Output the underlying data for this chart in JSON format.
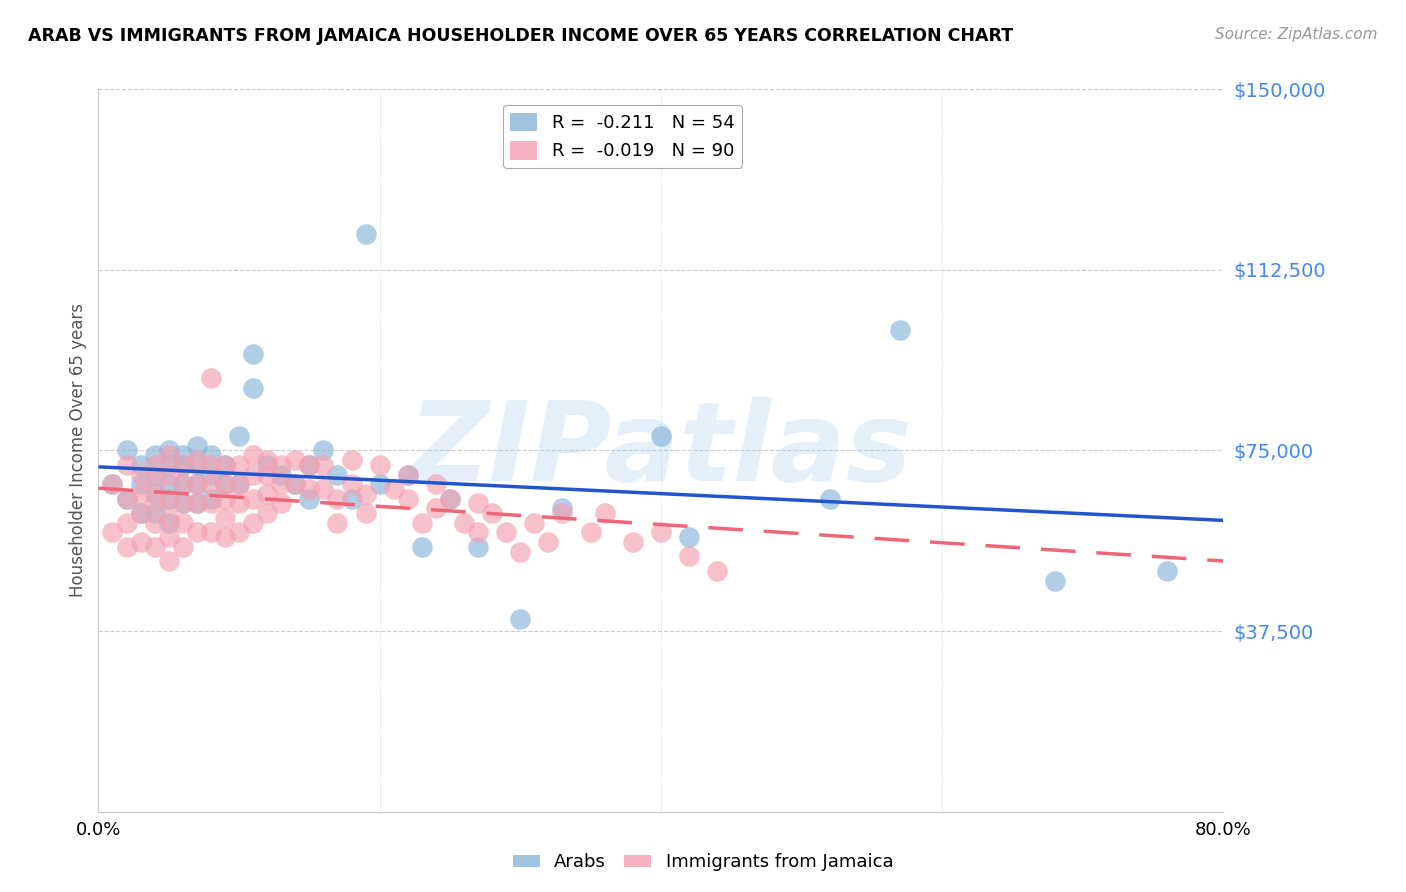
{
  "title": "ARAB VS IMMIGRANTS FROM JAMAICA HOUSEHOLDER INCOME OVER 65 YEARS CORRELATION CHART",
  "source": "Source: ZipAtlas.com",
  "ylabel": "Householder Income Over 65 years",
  "ylim": [
    0,
    150000
  ],
  "xlim": [
    0.0,
    0.8
  ],
  "yticks": [
    0,
    37500,
    75000,
    112500,
    150000
  ],
  "ytick_labels": [
    "",
    "$37,500",
    "$75,000",
    "$112,500",
    "$150,000"
  ],
  "xticks": [
    0.0,
    0.2,
    0.4,
    0.6,
    0.8
  ],
  "xtick_labels": [
    "0.0%",
    "",
    "",
    "",
    "80.0%"
  ],
  "arab_color": "#89B4D9",
  "jamaica_color": "#F4A0B0",
  "arab_line_color": "#2255CC",
  "jamaica_line_color": "#EE6677",
  "watermark": "ZIPatlas",
  "legend_arab_label": "R =  -0.211   N = 54",
  "legend_jamaica_label": "R =  -0.019   N = 90",
  "bottom_legend_arab": "Arabs",
  "bottom_legend_jamaica": "Immigrants from Jamaica",
  "arab_x": [
    0.01,
    0.02,
    0.02,
    0.03,
    0.03,
    0.03,
    0.04,
    0.04,
    0.04,
    0.04,
    0.05,
    0.05,
    0.05,
    0.05,
    0.05,
    0.06,
    0.06,
    0.06,
    0.06,
    0.07,
    0.07,
    0.07,
    0.07,
    0.08,
    0.08,
    0.08,
    0.09,
    0.09,
    0.1,
    0.1,
    0.11,
    0.11,
    0.12,
    0.13,
    0.14,
    0.15,
    0.15,
    0.16,
    0.17,
    0.18,
    0.19,
    0.2,
    0.22,
    0.23,
    0.25,
    0.27,
    0.3,
    0.33,
    0.4,
    0.42,
    0.52,
    0.57,
    0.68,
    0.76
  ],
  "arab_y": [
    68000,
    75000,
    65000,
    72000,
    68000,
    62000,
    74000,
    70000,
    66000,
    62000,
    75000,
    72000,
    68000,
    65000,
    60000,
    74000,
    72000,
    68000,
    64000,
    76000,
    72000,
    68000,
    64000,
    74000,
    70000,
    65000,
    72000,
    68000,
    78000,
    68000,
    95000,
    88000,
    72000,
    70000,
    68000,
    72000,
    65000,
    75000,
    70000,
    65000,
    120000,
    68000,
    70000,
    55000,
    65000,
    55000,
    40000,
    63000,
    78000,
    57000,
    65000,
    100000,
    48000,
    50000
  ],
  "jamaica_x": [
    0.01,
    0.01,
    0.02,
    0.02,
    0.02,
    0.02,
    0.03,
    0.03,
    0.03,
    0.03,
    0.04,
    0.04,
    0.04,
    0.04,
    0.04,
    0.05,
    0.05,
    0.05,
    0.05,
    0.05,
    0.05,
    0.06,
    0.06,
    0.06,
    0.06,
    0.06,
    0.07,
    0.07,
    0.07,
    0.07,
    0.08,
    0.08,
    0.08,
    0.08,
    0.08,
    0.09,
    0.09,
    0.09,
    0.09,
    0.09,
    0.1,
    0.1,
    0.1,
    0.1,
    0.11,
    0.11,
    0.11,
    0.11,
    0.12,
    0.12,
    0.12,
    0.12,
    0.13,
    0.13,
    0.13,
    0.14,
    0.14,
    0.15,
    0.15,
    0.16,
    0.16,
    0.17,
    0.17,
    0.18,
    0.18,
    0.19,
    0.19,
    0.2,
    0.21,
    0.22,
    0.22,
    0.23,
    0.24,
    0.24,
    0.25,
    0.26,
    0.27,
    0.27,
    0.28,
    0.29,
    0.3,
    0.31,
    0.32,
    0.33,
    0.35,
    0.36,
    0.38,
    0.4,
    0.42,
    0.44
  ],
  "jamaica_y": [
    68000,
    58000,
    72000,
    65000,
    60000,
    55000,
    70000,
    66000,
    62000,
    56000,
    72000,
    68000,
    64000,
    60000,
    55000,
    74000,
    70000,
    65000,
    61000,
    57000,
    52000,
    72000,
    68000,
    64000,
    60000,
    55000,
    73000,
    68000,
    64000,
    58000,
    90000,
    72000,
    68000,
    64000,
    58000,
    72000,
    68000,
    65000,
    61000,
    57000,
    72000,
    68000,
    64000,
    58000,
    74000,
    70000,
    65000,
    60000,
    73000,
    70000,
    66000,
    62000,
    72000,
    68000,
    64000,
    73000,
    68000,
    72000,
    67000,
    72000,
    67000,
    65000,
    60000,
    73000,
    68000,
    66000,
    62000,
    72000,
    67000,
    70000,
    65000,
    60000,
    68000,
    63000,
    65000,
    60000,
    64000,
    58000,
    62000,
    58000,
    54000,
    60000,
    56000,
    62000,
    58000,
    62000,
    56000,
    58000,
    53000,
    50000
  ]
}
